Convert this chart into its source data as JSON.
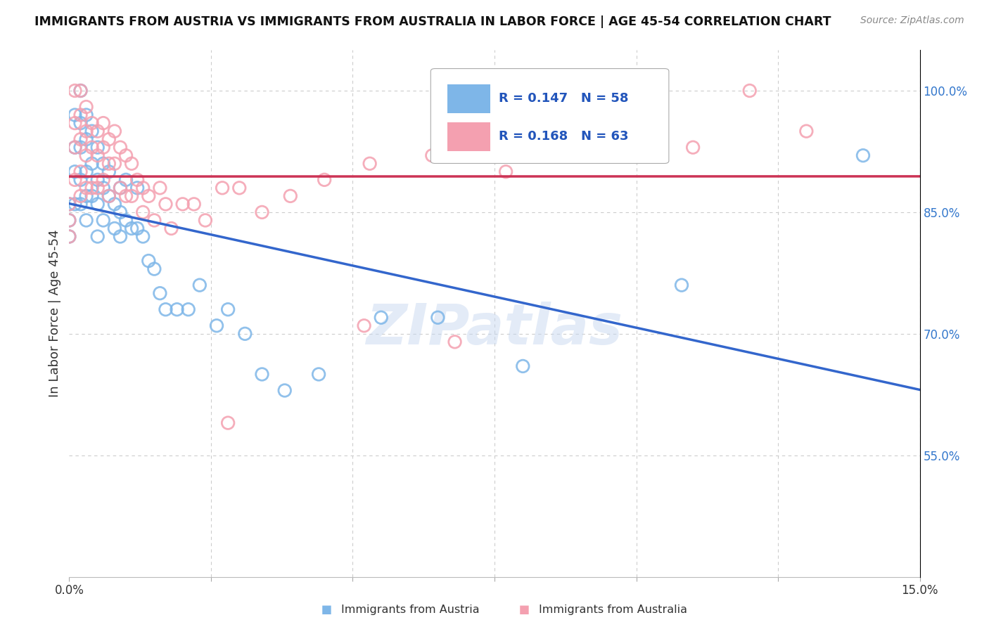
{
  "title": "IMMIGRANTS FROM AUSTRIA VS IMMIGRANTS FROM AUSTRALIA IN LABOR FORCE | AGE 45-54 CORRELATION CHART",
  "source": "Source: ZipAtlas.com",
  "ylabel": "In Labor Force | Age 45-54",
  "xlim": [
    0.0,
    0.15
  ],
  "ylim": [
    0.4,
    1.05
  ],
  "xticks": [
    0.0,
    0.025,
    0.05,
    0.075,
    0.1,
    0.125,
    0.15
  ],
  "xticklabels": [
    "0.0%",
    "",
    "",
    "",
    "",
    "",
    "15.0%"
  ],
  "yticks_right": [
    0.55,
    0.7,
    0.85,
    1.0
  ],
  "yticklabels_right": [
    "55.0%",
    "70.0%",
    "85.0%",
    "100.0%"
  ],
  "austria_color": "#7eb6e8",
  "australia_color": "#f4a0b0",
  "austria_line_color": "#3366cc",
  "australia_line_color": "#cc3355",
  "austria_R": 0.147,
  "austria_N": 58,
  "australia_R": 0.168,
  "australia_N": 63,
  "legend_R_color": "#2255bb",
  "watermark": "ZIPatlas",
  "austria_x": [
    0.0,
    0.0,
    0.0,
    0.001,
    0.001,
    0.001,
    0.001,
    0.002,
    0.002,
    0.002,
    0.002,
    0.002,
    0.003,
    0.003,
    0.003,
    0.003,
    0.003,
    0.004,
    0.004,
    0.004,
    0.005,
    0.005,
    0.005,
    0.005,
    0.006,
    0.006,
    0.006,
    0.007,
    0.007,
    0.008,
    0.008,
    0.009,
    0.009,
    0.009,
    0.01,
    0.01,
    0.011,
    0.012,
    0.012,
    0.013,
    0.014,
    0.015,
    0.016,
    0.017,
    0.019,
    0.021,
    0.023,
    0.026,
    0.028,
    0.031,
    0.034,
    0.038,
    0.044,
    0.055,
    0.065,
    0.08,
    0.108,
    0.14
  ],
  "austria_y": [
    0.86,
    0.84,
    0.82,
    0.97,
    0.93,
    0.9,
    0.86,
    1.0,
    0.96,
    0.93,
    0.89,
    0.86,
    0.97,
    0.94,
    0.9,
    0.87,
    0.84,
    0.95,
    0.91,
    0.87,
    0.93,
    0.89,
    0.86,
    0.82,
    0.91,
    0.88,
    0.84,
    0.9,
    0.87,
    0.86,
    0.83,
    0.88,
    0.85,
    0.82,
    0.89,
    0.84,
    0.83,
    0.88,
    0.83,
    0.82,
    0.79,
    0.78,
    0.75,
    0.73,
    0.73,
    0.73,
    0.76,
    0.71,
    0.73,
    0.7,
    0.65,
    0.63,
    0.65,
    0.72,
    0.72,
    0.66,
    0.76,
    0.92
  ],
  "australia_x": [
    0.0,
    0.0,
    0.0,
    0.001,
    0.001,
    0.001,
    0.001,
    0.002,
    0.002,
    0.002,
    0.002,
    0.002,
    0.003,
    0.003,
    0.003,
    0.003,
    0.004,
    0.004,
    0.004,
    0.005,
    0.005,
    0.005,
    0.006,
    0.006,
    0.006,
    0.007,
    0.007,
    0.007,
    0.008,
    0.008,
    0.009,
    0.009,
    0.01,
    0.01,
    0.011,
    0.011,
    0.012,
    0.013,
    0.013,
    0.014,
    0.015,
    0.016,
    0.017,
    0.018,
    0.02,
    0.022,
    0.024,
    0.027,
    0.03,
    0.034,
    0.039,
    0.045,
    0.053,
    0.064,
    0.077,
    0.091,
    0.11,
    0.13,
    0.028,
    0.052,
    0.068,
    0.082,
    0.12
  ],
  "australia_y": [
    0.86,
    0.84,
    0.82,
    1.0,
    0.96,
    0.93,
    0.89,
    1.0,
    0.97,
    0.94,
    0.9,
    0.87,
    0.98,
    0.95,
    0.92,
    0.88,
    0.96,
    0.93,
    0.88,
    0.95,
    0.92,
    0.88,
    0.96,
    0.93,
    0.89,
    0.94,
    0.91,
    0.87,
    0.95,
    0.91,
    0.93,
    0.88,
    0.92,
    0.87,
    0.91,
    0.87,
    0.89,
    0.88,
    0.85,
    0.87,
    0.84,
    0.88,
    0.86,
    0.83,
    0.86,
    0.86,
    0.84,
    0.88,
    0.88,
    0.85,
    0.87,
    0.89,
    0.91,
    0.92,
    0.9,
    0.93,
    0.93,
    0.95,
    0.59,
    0.71,
    0.69,
    1.0,
    1.0
  ]
}
